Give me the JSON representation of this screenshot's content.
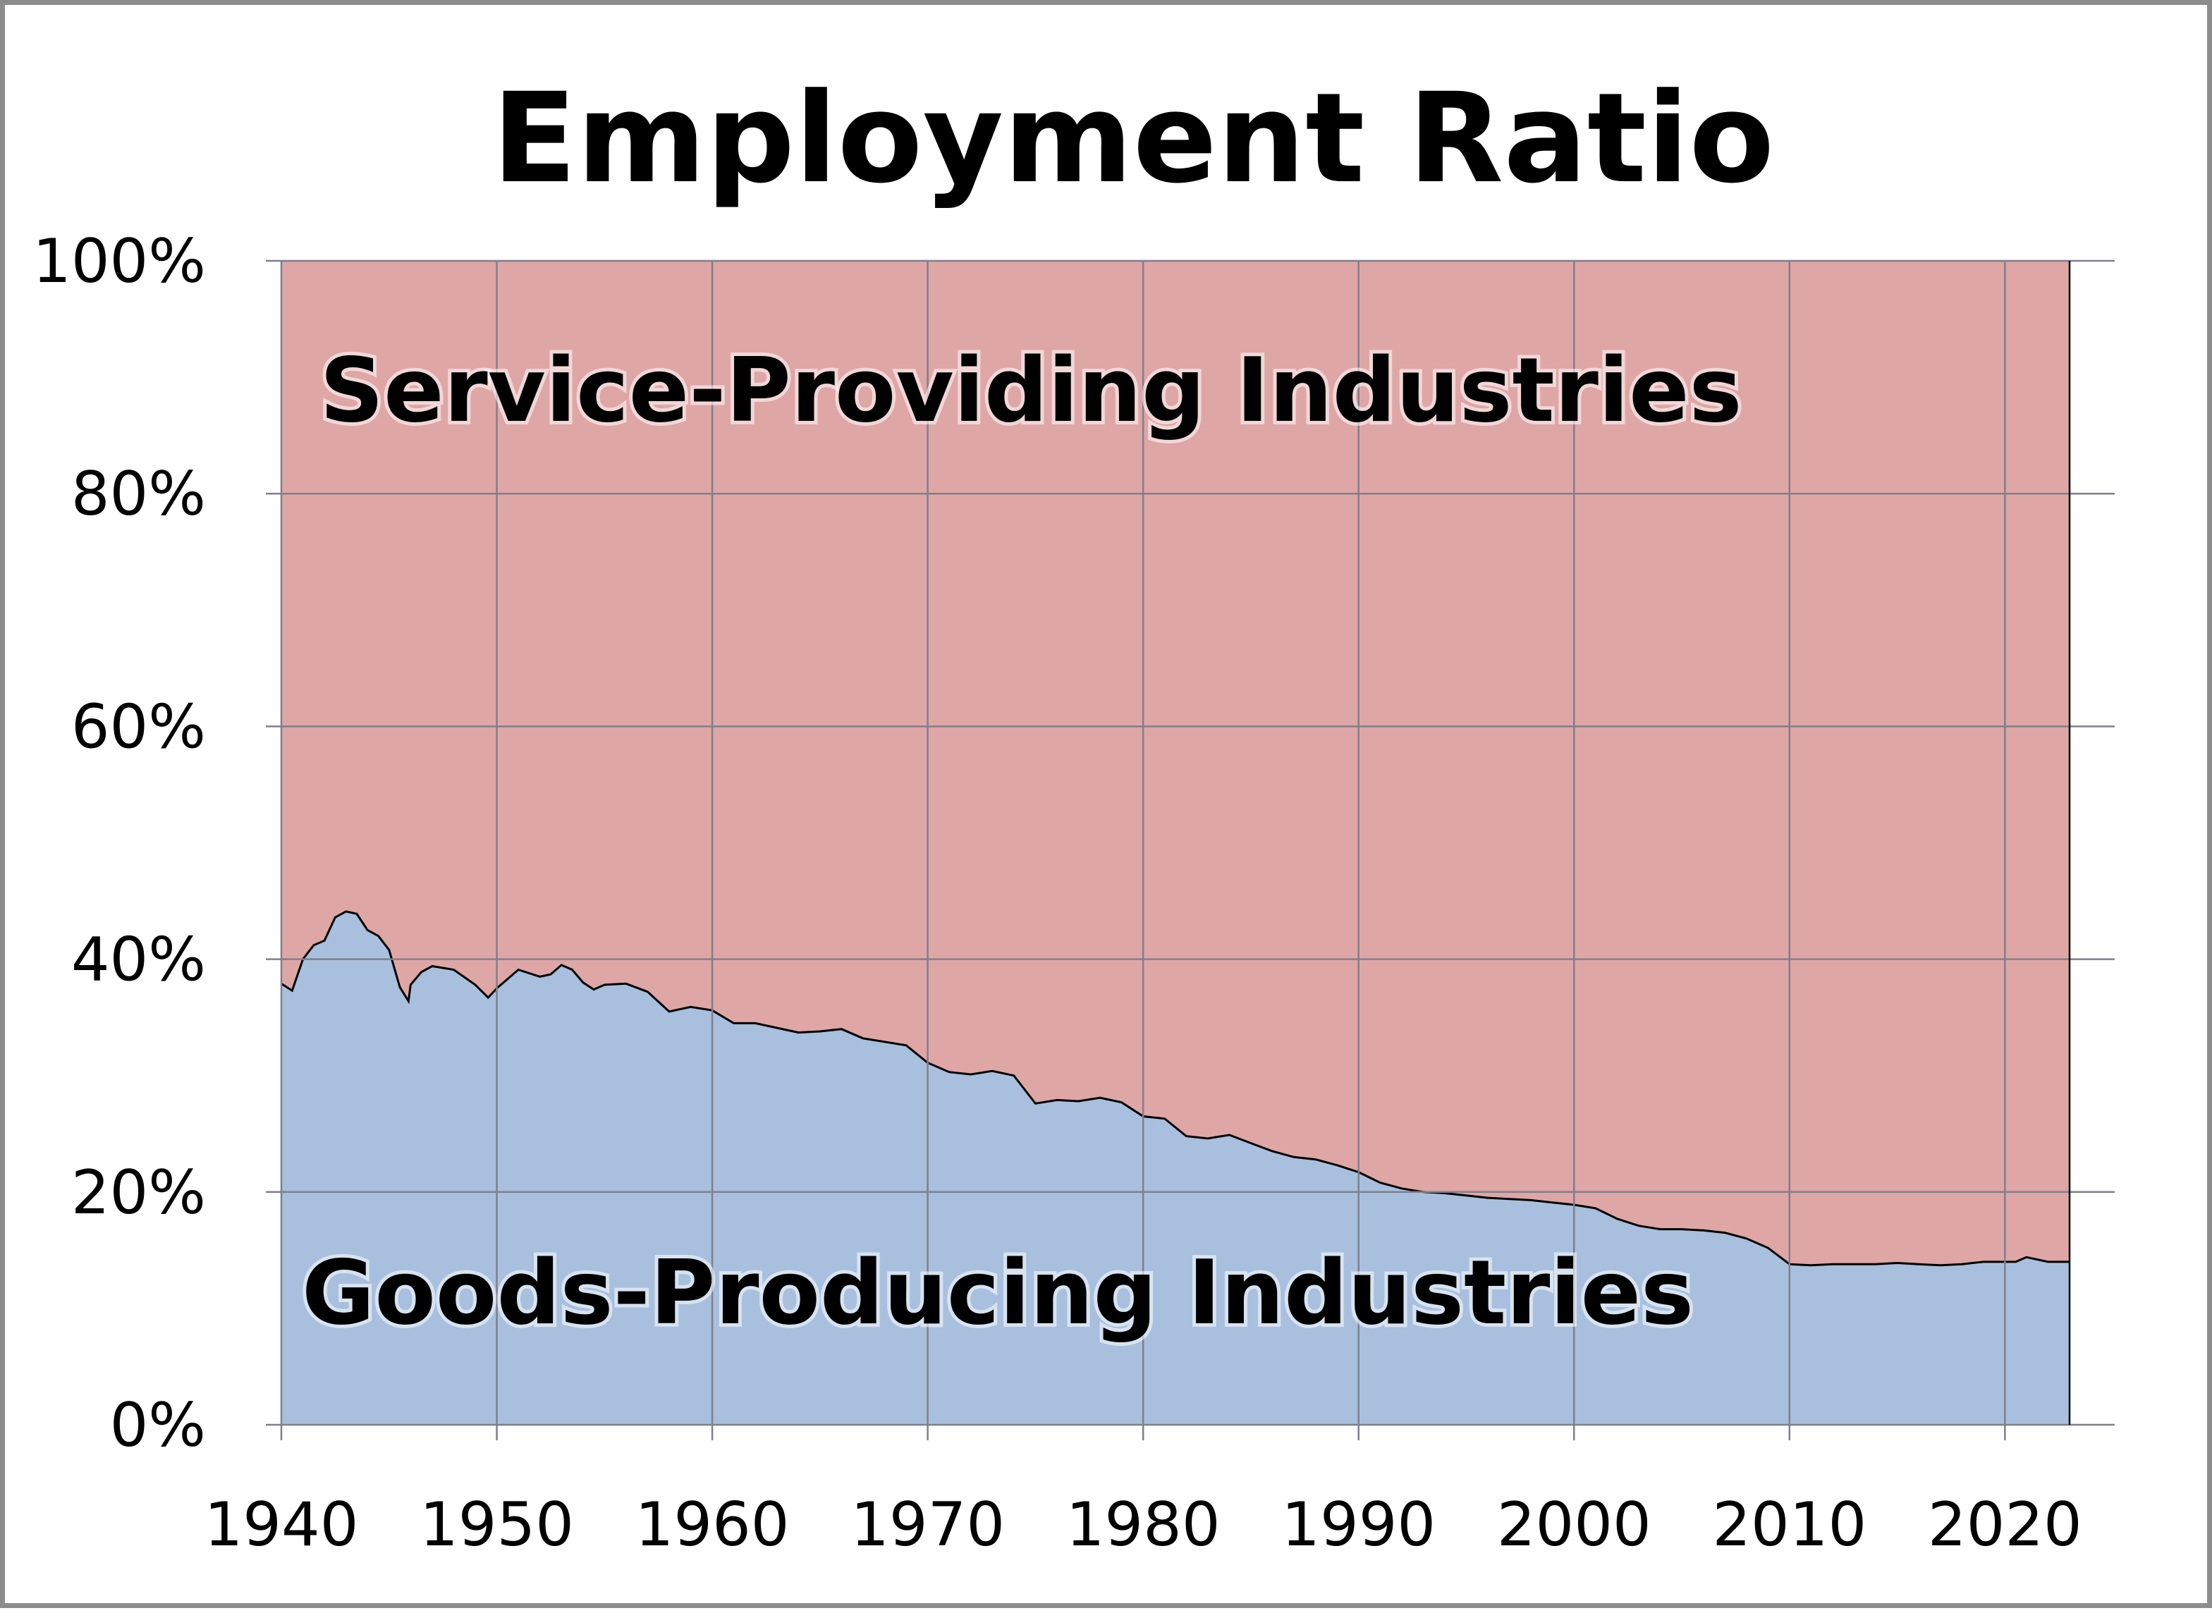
{
  "chart_data": {
    "type": "area",
    "title": "Employment Ratio",
    "xlabel": "",
    "ylabel": "",
    "xlim": [
      1940,
      2023
    ],
    "ylim": [
      0,
      100
    ],
    "x_ticks": [
      "1940",
      "1950",
      "1960",
      "1970",
      "1980",
      "1990",
      "2000",
      "2010",
      "2020"
    ],
    "y_ticks": [
      "0%",
      "20%",
      "40%",
      "60%",
      "80%",
      "100%"
    ],
    "grid": true,
    "stacked_percent": true,
    "colors": {
      "service": "#dfa6a6",
      "goods": "#a8c0de",
      "grid": "#7f7f8c",
      "line": "#000000"
    },
    "region_labels": {
      "service": "Service-Providing Industries",
      "goods": "Goods-Producing Industries"
    },
    "series": [
      {
        "name": "Goods-Producing Industries",
        "x": [
          1940,
          1940.5,
          1941,
          1941.5,
          1942,
          1942.5,
          1943,
          1943.5,
          1944,
          1944.5,
          1945,
          1945.5,
          1945.9,
          1946,
          1946.5,
          1947,
          1948,
          1949,
          1949.6,
          1950,
          1951,
          1952,
          1952.5,
          1953,
          1953.5,
          1954,
          1954.5,
          1955,
          1956,
          1957,
          1958,
          1959,
          1960,
          1961,
          1962,
          1963,
          1964,
          1965,
          1966,
          1967,
          1968,
          1969,
          1970,
          1971,
          1972,
          1973,
          1974,
          1975,
          1976,
          1977,
          1978,
          1979,
          1980,
          1981,
          1982,
          1983,
          1984,
          1985,
          1986,
          1987,
          1988,
          1989,
          1990,
          1991,
          1992,
          1993,
          1994,
          1995,
          1996,
          1997,
          1998,
          1999,
          2000,
          2001,
          2002,
          2003,
          2004,
          2005,
          2006,
          2007,
          2008,
          2009,
          2010,
          2011,
          2012,
          2013,
          2014,
          2015,
          2016,
          2017,
          2018,
          2019,
          2020,
          2020.5,
          2021,
          2022,
          2023
        ],
        "values": [
          37.9,
          37.3,
          40.0,
          41.2,
          41.6,
          43.6,
          44.1,
          43.9,
          42.5,
          42.0,
          40.8,
          37.6,
          36.4,
          37.8,
          38.9,
          39.4,
          39.1,
          37.8,
          36.7,
          37.5,
          39.1,
          38.5,
          38.7,
          39.5,
          39.1,
          38.0,
          37.4,
          37.8,
          37.9,
          37.2,
          35.5,
          35.9,
          35.6,
          34.5,
          34.5,
          34.1,
          33.7,
          33.8,
          34.0,
          33.2,
          32.9,
          32.6,
          31.1,
          30.3,
          30.1,
          30.4,
          30.0,
          27.6,
          27.9,
          27.8,
          28.1,
          27.7,
          26.5,
          26.3,
          24.8,
          24.6,
          24.9,
          24.2,
          23.5,
          23.0,
          22.8,
          22.3,
          21.7,
          20.8,
          20.3,
          20.0,
          19.9,
          19.7,
          19.5,
          19.4,
          19.3,
          19.1,
          18.9,
          18.6,
          17.7,
          17.1,
          16.8,
          16.8,
          16.7,
          16.5,
          16.0,
          15.2,
          13.8,
          13.7,
          13.8,
          13.8,
          13.8,
          13.9,
          13.8,
          13.7,
          13.8,
          14.0,
          14.0,
          14.0,
          14.4,
          14.0,
          14.0
        ]
      },
      {
        "name": "Service-Providing Industries",
        "complement_of": "Goods-Producing Industries"
      }
    ]
  }
}
